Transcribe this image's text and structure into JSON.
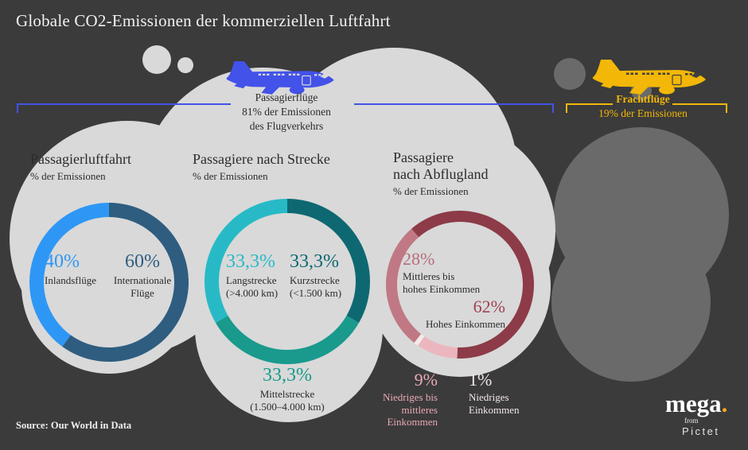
{
  "title": "Globale CO2-Emissionen der kommerziellen Luftfahrt",
  "source": "Source: Our World in Data",
  "logo": {
    "brand": "mega",
    "brand_dot": ".",
    "sub": "from",
    "company": "Pictet",
    "dot_color": "#f0a81e"
  },
  "icons": {
    "passenger_plane": "airplane-side-icon",
    "freight_plane": "airplane-side-icon"
  },
  "palette": {
    "background": "#3b3b3b",
    "cloud": "#d9d9d9",
    "freight_cloud": "#6a6a6a",
    "passenger_accent": "#4352e8",
    "freight_accent": "#f2b707",
    "title_text": "#f1f1f1",
    "dark_text": "#2b2b2b"
  },
  "passenger_group": {
    "label_lines": [
      "Passagierflüge",
      "81% der Emissionen",
      "des Flugverkehrs"
    ],
    "share_pct": 81,
    "color": "#4352e8"
  },
  "freight_group": {
    "label_lines": [
      "Frachtflüge",
      "19% der Emissionen"
    ],
    "share_pct": 19,
    "color": "#f2b707"
  },
  "chart_data": [
    {
      "type": "donut",
      "title": "Passagierluftfahrt",
      "subtitle": "% der Emissionen",
      "unit": "%",
      "start_angle": 0,
      "segments": [
        {
          "name": "Internationale Flüge",
          "value": 60,
          "pct_label": "60%",
          "color": "#2e5d80",
          "pct_color": "#2e5d80",
          "label_lines": [
            "Internationale",
            "Flüge"
          ]
        },
        {
          "name": "Inlandsflüge",
          "value": 40,
          "pct_label": "40%",
          "color": "#2e97f5",
          "pct_color": "#2e97f5",
          "label_lines": [
            "Inlandsflüge"
          ]
        }
      ]
    },
    {
      "type": "donut",
      "title": "Passagiere nach Strecke",
      "subtitle": "% der Emissionen",
      "unit": "%",
      "start_angle": 0,
      "segments": [
        {
          "name": "Kurzstrecke",
          "value": 33.3,
          "pct_label": "33,3%",
          "color": "#0e6872",
          "pct_color": "#0e6872",
          "label_lines": [
            "Kurzstrecke",
            "(<1.500 km)"
          ]
        },
        {
          "name": "Mittelstrecke",
          "value": 33.3,
          "pct_label": "33,3%",
          "color": "#199a8d",
          "pct_color": "#199a8d",
          "label_lines": [
            "Mittelstrecke",
            "(1.500–4.000 km)"
          ]
        },
        {
          "name": "Langstrecke",
          "value": 33.3,
          "pct_label": "33,3%",
          "color": "#27bac6",
          "pct_color": "#27bac6",
          "label_lines": [
            "Langstrecke",
            "(>4.000 km)"
          ]
        }
      ]
    },
    {
      "type": "donut",
      "title": "Passagiere nach Abflugland",
      "title_lines": [
        "Passagiere",
        "nach Abflugland"
      ],
      "subtitle": "% der Emissionen",
      "unit": "%",
      "start_angle": -41,
      "segments": [
        {
          "name": "Hohes Einkommen",
          "value": 62,
          "pct_label": "62%",
          "color": "#8d3b48",
          "pct_color": "#9e4255",
          "label_lines": [
            "Hohes Einkommen"
          ]
        },
        {
          "name": "Niedriges bis mittleres Einkommen",
          "value": 9,
          "pct_label": "9%",
          "color": "#ecb6be",
          "pct_color": "#eaa9b5",
          "label_lines": [
            "Niedriges bis",
            "mittleres",
            "Einkommen"
          ]
        },
        {
          "name": "Niedriges Einkommen",
          "value": 1,
          "pct_label": "1%",
          "color": "#f2ecee",
          "pct_color": "#f2e7ea",
          "label_lines": [
            "Niedriges",
            "Einkommen"
          ]
        },
        {
          "name": "Mittleres bis hohes Einkommen",
          "value": 28,
          "pct_label": "28%",
          "color": "#c07984",
          "pct_color": "#b66d7b",
          "label_lines": [
            "Mittleres bis",
            "hohes Einkommen"
          ]
        }
      ]
    }
  ]
}
